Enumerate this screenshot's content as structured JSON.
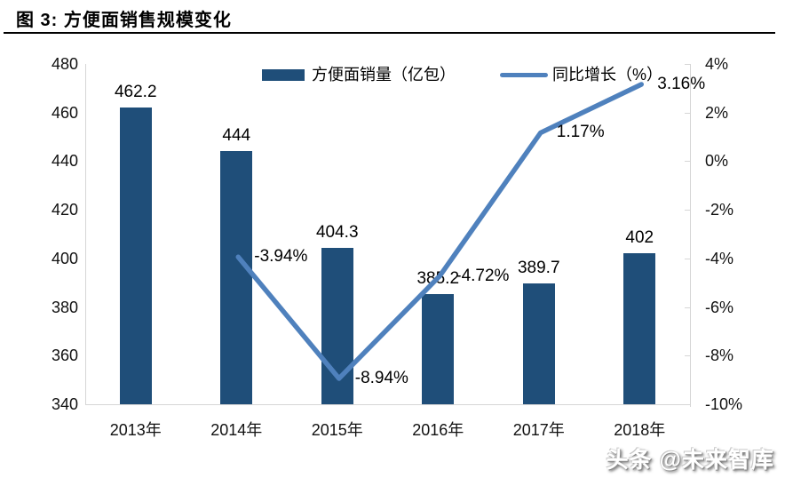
{
  "page": {
    "title": "图 3:  方便面销售规模变化",
    "watermark": "头条 @未来智库"
  },
  "chart_data": {
    "type": "bar+line",
    "title": "方便面销售规模变化",
    "categories": [
      "2013年",
      "2014年",
      "2015年",
      "2016年",
      "2017年",
      "2018年"
    ],
    "series": [
      {
        "name": "方便面销量（亿包）",
        "type": "bar",
        "axis": "left",
        "color": "#1F4E79",
        "values": [
          462.2,
          444,
          404.3,
          385.2,
          389.7,
          402
        ],
        "labels": [
          "462.2",
          "444",
          "404.3",
          "385.2",
          "389.7",
          "402"
        ]
      },
      {
        "name": "同比增长（%）",
        "type": "line",
        "axis": "right",
        "color": "#4F81BD",
        "values": [
          null,
          -3.94,
          -8.94,
          -4.72,
          1.17,
          3.16
        ],
        "labels": [
          null,
          "-3.94%",
          "-8.94%",
          "-4.72%",
          "1.17%",
          "3.16%"
        ]
      }
    ],
    "left_axis": {
      "min": 340,
      "max": 480,
      "step": 20,
      "ticks": [
        "480",
        "460",
        "440",
        "420",
        "400",
        "380",
        "360",
        "340"
      ]
    },
    "right_axis": {
      "min": -10,
      "max": 4,
      "step": 2,
      "ticks": [
        "4%",
        "2%",
        "0%",
        "-2%",
        "-4%",
        "-6%",
        "-8%",
        "-10%"
      ]
    },
    "axis_color": "#d6d6d6",
    "legend_position": "top",
    "grid": false
  }
}
